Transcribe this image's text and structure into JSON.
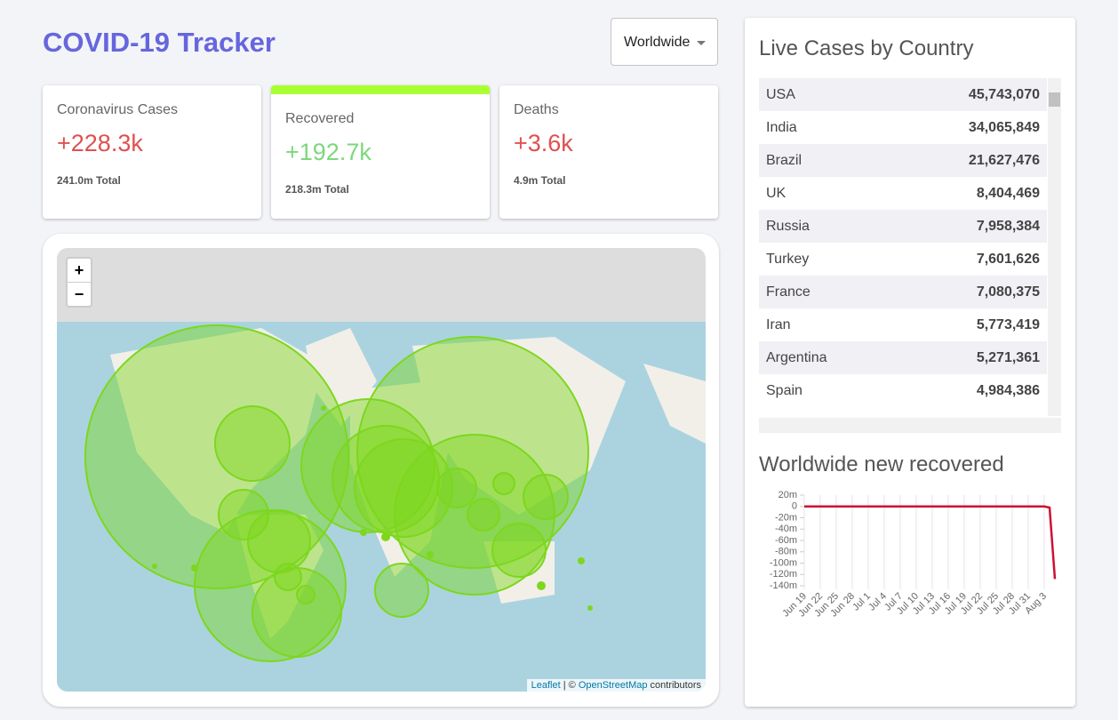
{
  "header": {
    "title": "COVID-19 Tracker",
    "dropdown": "Worldwide"
  },
  "stats": [
    {
      "label": "Coronavirus Cases",
      "today": "+228.3k",
      "total": "241.0m Total"
    },
    {
      "label": "Recovered",
      "today": "+192.7k",
      "total": "218.3m Total"
    },
    {
      "label": "Deaths",
      "today": "+3.6k",
      "total": "4.9m Total"
    }
  ],
  "map": {
    "zoom_in": "+",
    "zoom_out": "−",
    "attribution_leaflet": "Leaflet",
    "attribution_sep": " | © ",
    "attribution_osm": "OpenStreetMap",
    "attribution_tail": " contributors"
  },
  "table": {
    "title": "Live Cases by Country",
    "rows": [
      [
        "USA",
        "45,743,070"
      ],
      [
        "India",
        "34,065,849"
      ],
      [
        "Brazil",
        "21,627,476"
      ],
      [
        "UK",
        "8,404,469"
      ],
      [
        "Russia",
        "7,958,384"
      ],
      [
        "Turkey",
        "7,601,626"
      ],
      [
        "France",
        "7,080,375"
      ],
      [
        "Iran",
        "5,773,419"
      ],
      [
        "Argentina",
        "5,271,361"
      ],
      [
        "Spain",
        "4,984,386"
      ]
    ]
  },
  "recovered_chart": {
    "type": "line",
    "title": "Worldwide new recovered",
    "color": "#cc1034",
    "categories": [
      "Jun 19",
      null,
      null,
      "Jun 22",
      null,
      null,
      "Jun 25",
      null,
      null,
      "Jun 28",
      null,
      null,
      "Jul 1",
      null,
      null,
      "Jul 4",
      null,
      null,
      "Jul 7",
      null,
      null,
      "Jul 10",
      null,
      null,
      "Jul 13",
      null,
      null,
      "Jul 16",
      null,
      null,
      "Jul 19",
      null,
      null,
      "Jul 22",
      null,
      null,
      "Jul 25",
      null,
      null,
      "Jul 28",
      null,
      null,
      "Jul 31",
      null,
      null,
      "Aug 3",
      null,
      null
    ],
    "values": [
      0,
      0,
      0,
      0,
      0,
      0,
      0,
      0,
      0,
      0,
      0,
      0,
      0,
      0,
      0,
      0,
      0,
      0,
      0,
      0,
      0,
      0,
      0,
      0,
      0,
      0,
      0,
      0,
      0,
      0,
      0,
      0,
      0,
      0,
      0,
      0,
      0,
      0,
      0,
      0,
      0,
      0,
      0,
      0,
      0,
      0,
      -2000000,
      -128000000
    ],
    "ylim": [
      -140000000,
      20000000
    ],
    "yticks": [
      {
        "value": 20000000,
        "label": "20m"
      },
      0,
      {
        "value": -20000000,
        "label": "-20m"
      },
      {
        "value": -40000000,
        "label": "-40m"
      },
      {
        "value": -60000000,
        "label": "-60m"
      },
      {
        "value": -80000000,
        "label": "-80m"
      },
      {
        "value": -100000000,
        "label": "-100m"
      },
      {
        "value": -120000000,
        "label": "-120m"
      },
      {
        "value": -140000000,
        "label": "-140m"
      }
    ],
    "grid": true
  }
}
